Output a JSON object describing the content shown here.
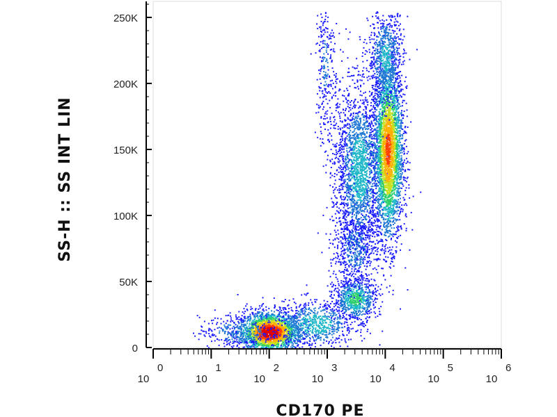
{
  "chart_data": {
    "type": "scatter",
    "title": "",
    "xlabel": "CD170 PE",
    "ylabel": "SS-H :: SS INT LIN",
    "x_scale": "log",
    "xlim": [
      1,
      1000000
    ],
    "ylim": [
      0,
      262144
    ],
    "grid": false,
    "y_ticks": [
      {
        "value": 0,
        "label": "0"
      },
      {
        "value": 50000,
        "label": "50K"
      },
      {
        "value": 100000,
        "label": "100K"
      },
      {
        "value": 150000,
        "label": "150K"
      },
      {
        "value": 200000,
        "label": "200K"
      },
      {
        "value": 250000,
        "label": "250K"
      }
    ],
    "x_ticks": [
      {
        "value": 1,
        "base": "10",
        "exp": "0"
      },
      {
        "value": 10,
        "base": "10",
        "exp": "1"
      },
      {
        "value": 100,
        "base": "10",
        "exp": "2"
      },
      {
        "value": 1000,
        "base": "10",
        "exp": "3"
      },
      {
        "value": 10000,
        "base": "10",
        "exp": "4"
      },
      {
        "value": 100000,
        "base": "10",
        "exp": "5"
      },
      {
        "value": 1000000,
        "base": "10",
        "exp": "6"
      }
    ],
    "color_scale": [
      "#1a1aff",
      "#1f77d4",
      "#20b8c8",
      "#2fcf6a",
      "#c8e020",
      "#ffb000",
      "#ff4000",
      "#e00000"
    ],
    "populations": [
      {
        "center_x": 100,
        "center_y": 12000,
        "sd_logx": 0.28,
        "sd_y": 8000,
        "count": 2200,
        "peak_density": 1.0
      },
      {
        "center_x": 30,
        "center_y": 12000,
        "sd_logx": 0.35,
        "sd_y": 6000,
        "count": 300,
        "peak_density": 0.25
      },
      {
        "center_x": 600,
        "center_y": 18000,
        "sd_logx": 0.35,
        "sd_y": 9000,
        "count": 700,
        "peak_density": 0.35
      },
      {
        "center_x": 3000,
        "center_y": 37000,
        "sd_logx": 0.18,
        "sd_y": 8000,
        "count": 700,
        "peak_density": 0.45
      },
      {
        "center_x": 3000,
        "center_y": 75000,
        "sd_logx": 0.18,
        "sd_y": 15000,
        "count": 500,
        "peak_density": 0.2
      },
      {
        "center_x": 3500,
        "center_y": 135000,
        "sd_logx": 0.18,
        "sd_y": 30000,
        "count": 1800,
        "peak_density": 0.35
      },
      {
        "center_x": 11000,
        "center_y": 150000,
        "sd_logx": 0.13,
        "sd_y": 35000,
        "count": 3200,
        "peak_density": 0.8
      },
      {
        "center_x": 10000,
        "center_y": 220000,
        "sd_logx": 0.15,
        "sd_y": 18000,
        "count": 700,
        "peak_density": 0.3
      },
      {
        "center_x": 900,
        "center_y": 215000,
        "sd_logx": 0.08,
        "sd_y": 30000,
        "count": 250,
        "peak_density": 0.15
      },
      {
        "center_x": 1600,
        "center_y": 130000,
        "sd_logx": 0.12,
        "sd_y": 45000,
        "count": 300,
        "peak_density": 0.12
      }
    ]
  }
}
